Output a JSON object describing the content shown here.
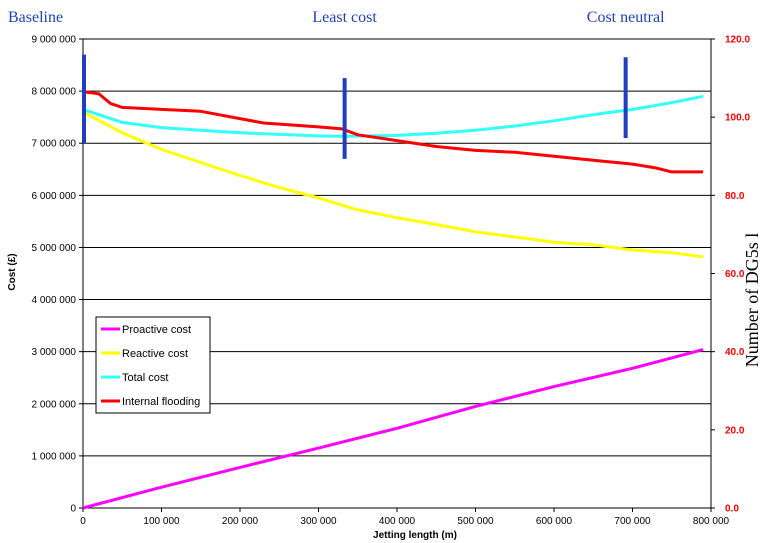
{
  "chart_data": {
    "type": "line",
    "xlabel": "Jetting length (m)",
    "ylabel": "Cost (£)",
    "y2label": "Number of DG5s l",
    "xlim": [
      0,
      800000
    ],
    "ylim": [
      0,
      9000000
    ],
    "y2lim": [
      0,
      120
    ],
    "grid": "horizontal",
    "legend_position": "lower-left",
    "x_ticks": [
      "0",
      "100 000",
      "200 000",
      "300 000",
      "400 000",
      "500 000",
      "600 000",
      "700 000",
      "800 000"
    ],
    "y_ticks": [
      "0",
      "1 000 000",
      "2 000 000",
      "3 000 000",
      "4 000 000",
      "5 000 000",
      "6 000 000",
      "7 000 000",
      "8 000 000",
      "9 000 000"
    ],
    "y2_ticks": [
      "0.0",
      "20.0",
      "40.0",
      "60.0",
      "80.0",
      "100.0",
      "120.0"
    ],
    "series": [
      {
        "name": "Proactive cost",
        "axis": "left",
        "color": "#ff00ff",
        "points": [
          [
            0,
            0
          ],
          [
            100000,
            400000
          ],
          [
            200000,
            780000
          ],
          [
            300000,
            1150000
          ],
          [
            400000,
            1530000
          ],
          [
            500000,
            1950000
          ],
          [
            600000,
            2330000
          ],
          [
            700000,
            2680000
          ],
          [
            790000,
            3040000
          ]
        ]
      },
      {
        "name": "Reactive cost",
        "axis": "left",
        "color": "#ffff00",
        "points": [
          [
            0,
            7600000
          ],
          [
            50000,
            7200000
          ],
          [
            100000,
            6880000
          ],
          [
            150000,
            6630000
          ],
          [
            200000,
            6380000
          ],
          [
            250000,
            6150000
          ],
          [
            300000,
            5950000
          ],
          [
            350000,
            5720000
          ],
          [
            400000,
            5570000
          ],
          [
            450000,
            5440000
          ],
          [
            500000,
            5300000
          ],
          [
            550000,
            5200000
          ],
          [
            600000,
            5100000
          ],
          [
            650000,
            5050000
          ],
          [
            700000,
            4950000
          ],
          [
            750000,
            4900000
          ],
          [
            790000,
            4820000
          ]
        ]
      },
      {
        "name": "Total cost",
        "axis": "left",
        "color": "#33ffff",
        "points": [
          [
            0,
            7650000
          ],
          [
            50000,
            7400000
          ],
          [
            100000,
            7300000
          ],
          [
            150000,
            7250000
          ],
          [
            200000,
            7200000
          ],
          [
            250000,
            7170000
          ],
          [
            300000,
            7140000
          ],
          [
            330000,
            7130000
          ],
          [
            400000,
            7150000
          ],
          [
            450000,
            7190000
          ],
          [
            500000,
            7250000
          ],
          [
            550000,
            7330000
          ],
          [
            600000,
            7430000
          ],
          [
            650000,
            7550000
          ],
          [
            700000,
            7650000
          ],
          [
            750000,
            7780000
          ],
          [
            790000,
            7900000
          ]
        ]
      },
      {
        "name": "Internal flooding",
        "axis": "right",
        "color": "#ff0000",
        "points": [
          [
            0,
            106.5
          ],
          [
            20000,
            106
          ],
          [
            35000,
            103.5
          ],
          [
            50000,
            102.5
          ],
          [
            100000,
            102
          ],
          [
            150000,
            101.5
          ],
          [
            230000,
            98.5
          ],
          [
            300000,
            97.5
          ],
          [
            330000,
            97
          ],
          [
            350000,
            95.5
          ],
          [
            400000,
            94
          ],
          [
            450000,
            92.5
          ],
          [
            500000,
            91.5
          ],
          [
            550000,
            91
          ],
          [
            600000,
            90
          ],
          [
            650000,
            89
          ],
          [
            700000,
            88
          ],
          [
            730000,
            87
          ],
          [
            750000,
            86
          ],
          [
            790000,
            86
          ]
        ]
      }
    ],
    "markers": [
      {
        "label": "Baseline",
        "x": 0,
        "y_from": 7000000,
        "y_to": 8700000
      },
      {
        "label": "Least cost",
        "x": 332000,
        "y_from": 6700000,
        "y_to": 8250000
      },
      {
        "label": "Cost neutral",
        "x": 690000,
        "y_from": 7100000,
        "y_to": 8650000
      }
    ]
  }
}
